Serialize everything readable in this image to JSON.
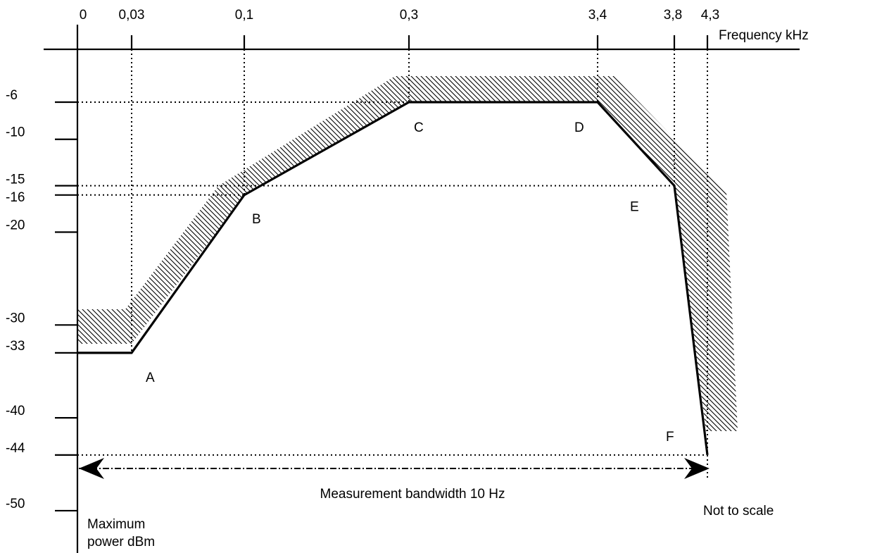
{
  "chart_data": {
    "type": "line",
    "title": "",
    "xlabel": "Frequency kHz",
    "ylabel": "Maximum power dBm",
    "ylabel_lines": [
      "Maximum",
      "power dBm"
    ],
    "x_scale": "not to scale",
    "x_ticks": [
      "0",
      "0,03",
      "0,1",
      "0,3",
      "3,4",
      "3,8",
      "4,3"
    ],
    "y_ticks": [
      "-6",
      "-10",
      "-15",
      "-16",
      "-20",
      "-30",
      "-33",
      "-40",
      "-44",
      "-50"
    ],
    "y_tick_values": [
      -6,
      -10,
      -15,
      -16,
      -20,
      -30,
      -33,
      -40,
      -44,
      -50
    ],
    "series": [
      {
        "points": [
          {
            "x": 0,
            "y": -33,
            "label": ""
          },
          {
            "x": 0.03,
            "y": -33,
            "label": "A"
          },
          {
            "x": 0.1,
            "y": -16,
            "label": "B"
          },
          {
            "x": 0.3,
            "y": -6,
            "label": "C"
          },
          {
            "x": 3.4,
            "y": -6,
            "label": "D"
          },
          {
            "x": 3.8,
            "y": -15,
            "label": "E"
          },
          {
            "x": 4.3,
            "y": -44,
            "label": "F"
          }
        ]
      }
    ],
    "annotations": {
      "bandwidth": "Measurement bandwidth 10 Hz",
      "scale_note": "Not to scale"
    },
    "colors": {
      "line": "#000000",
      "hatch": "#000000"
    }
  }
}
